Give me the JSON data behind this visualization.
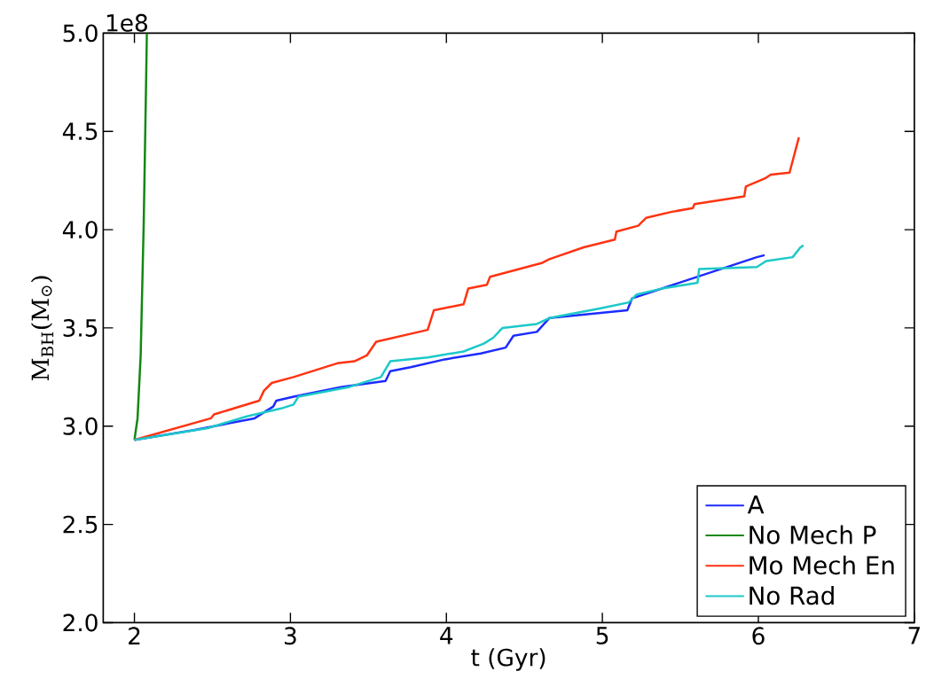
{
  "chart_data": {
    "type": "line",
    "xlabel": "t (Gyr)",
    "ylabel": "M$_{BH}$(M$_{⊙}$)",
    "annotations": [
      "1e8"
    ],
    "xlim": [
      1.8,
      7
    ],
    "xticks": [
      2,
      3,
      4,
      5,
      6,
      7
    ],
    "ylim": [
      2.0,
      5.0
    ],
    "yticks": [
      {
        "value": 2.0,
        "label": "2.0"
      },
      {
        "value": 2.5,
        "label": "2.5"
      },
      {
        "value": 3.0,
        "label": "3.0"
      },
      {
        "value": 3.5,
        "label": "3.5"
      },
      {
        "value": 4.0,
        "label": "4.0"
      },
      {
        "value": 4.5,
        "label": "4.5"
      },
      {
        "value": 5.0,
        "label": "5.0"
      }
    ],
    "legend": "bottom right",
    "grid": false,
    "marker": "none",
    "line_style": "solid",
    "series": [
      {
        "name": "A",
        "color": "#1c2bff",
        "x": [
          2,
          2.38,
          2.77,
          2.89,
          2.91,
          3.02,
          3.33,
          3.61,
          3.64,
          3.77,
          3.99,
          4.22,
          4.38,
          4.43,
          4.58,
          4.66,
          5.16,
          5.19,
          5.99,
          6.04
        ],
        "values": [
          2.93,
          2.98,
          3.04,
          3.1,
          3.13,
          3.15,
          3.2,
          3.23,
          3.28,
          3.3,
          3.34,
          3.37,
          3.4,
          3.46,
          3.48,
          3.55,
          3.59,
          3.65,
          3.86,
          3.87
        ]
      },
      {
        "name": "No Mech P",
        "color": "#118811",
        "x": [
          2,
          2.02,
          2.04,
          2.06,
          2.08
        ],
        "values": [
          2.93,
          3.04,
          3.36,
          4.05,
          5.0
        ]
      },
      {
        "name": "Mo Mech En",
        "color": "#ff3311",
        "x": [
          2,
          2.49,
          2.51,
          2.8,
          2.83,
          2.88,
          3.02,
          3.3,
          3.41,
          3.49,
          3.55,
          3.66,
          3.88,
          3.92,
          4.11,
          4.14,
          4.26,
          4.28,
          4.61,
          4.66,
          4.88,
          5.08,
          5.09,
          5.23,
          5.28,
          5.44,
          5.58,
          5.59,
          5.91,
          5.92,
          6.04,
          6.08,
          6.2,
          6.26
        ],
        "values": [
          2.93,
          3.04,
          3.06,
          3.13,
          3.18,
          3.22,
          3.25,
          3.32,
          3.33,
          3.36,
          3.43,
          3.45,
          3.49,
          3.59,
          3.62,
          3.7,
          3.72,
          3.76,
          3.83,
          3.85,
          3.91,
          3.95,
          3.99,
          4.02,
          4.06,
          4.09,
          4.11,
          4.13,
          4.17,
          4.22,
          4.26,
          4.28,
          4.29,
          4.47
        ]
      },
      {
        "name": "No Rad",
        "color": "#1cc8c8",
        "x": [
          2,
          2.47,
          2.72,
          2.94,
          3.02,
          3.05,
          3.38,
          3.58,
          3.64,
          3.88,
          4.11,
          4.24,
          4.3,
          4.36,
          4.58,
          4.66,
          4.99,
          5.17,
          5.22,
          5.38,
          5.61,
          5.62,
          5.99,
          6.05,
          6.22,
          6.27,
          6.29
        ],
        "values": [
          2.93,
          2.99,
          3.05,
          3.09,
          3.11,
          3.15,
          3.2,
          3.25,
          3.33,
          3.35,
          3.38,
          3.42,
          3.45,
          3.5,
          3.52,
          3.55,
          3.6,
          3.63,
          3.67,
          3.7,
          3.73,
          3.8,
          3.81,
          3.84,
          3.86,
          3.91,
          3.92
        ]
      }
    ]
  }
}
